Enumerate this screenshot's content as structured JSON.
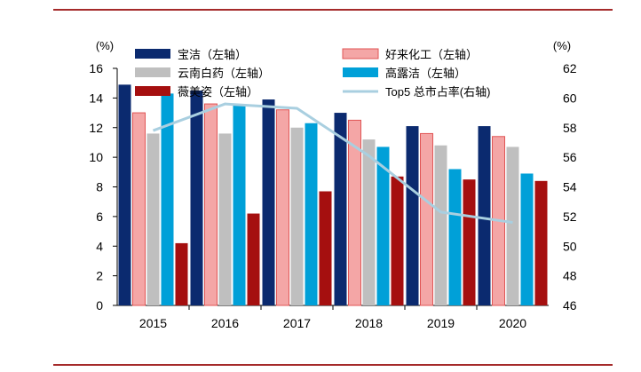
{
  "chart_data": {
    "type": "bar",
    "categories": [
      "2015",
      "2016",
      "2017",
      "2018",
      "2019",
      "2020"
    ],
    "left_axis": {
      "unit": "(%)",
      "ylim": [
        0,
        16
      ],
      "ticks": [
        "0",
        "2",
        "4",
        "6",
        "8",
        "10",
        "12",
        "14",
        "16"
      ]
    },
    "right_axis": {
      "unit": "(%)",
      "ylim": [
        46,
        62
      ],
      "ticks": [
        "46",
        "48",
        "50",
        "52",
        "54",
        "56",
        "58",
        "60",
        "62"
      ]
    },
    "series": [
      {
        "name": "宝洁（左轴）",
        "type": "bar",
        "axis": "left",
        "color": "#0b2a6f",
        "values": [
          14.9,
          14.5,
          13.9,
          13.0,
          12.1,
          12.1
        ]
      },
      {
        "name": "好来化工（左轴）",
        "type": "bar",
        "axis": "left",
        "color": "#f4a6a6",
        "border": "#e05555",
        "values": [
          13.0,
          13.6,
          13.2,
          12.5,
          11.6,
          11.4
        ]
      },
      {
        "name": "云南白药（左轴）",
        "type": "bar",
        "axis": "left",
        "color": "#bfbfbf",
        "values": [
          11.6,
          11.6,
          12.0,
          11.2,
          10.8,
          10.7
        ]
      },
      {
        "name": "高露洁（左轴）",
        "type": "bar",
        "axis": "left",
        "color": "#00a0d8",
        "values": [
          14.3,
          13.6,
          12.3,
          10.7,
          9.2,
          8.9
        ]
      },
      {
        "name": "薇美姿（左轴）",
        "type": "bar",
        "axis": "left",
        "color": "#a50f0f",
        "values": [
          4.2,
          6.2,
          7.7,
          8.7,
          8.5,
          8.4
        ]
      },
      {
        "name": "Top5 总市占率(右轴)",
        "type": "line",
        "axis": "right",
        "color": "#a9cfe0",
        "values": [
          57.8,
          59.6,
          59.3,
          56.1,
          52.3,
          51.6
        ]
      }
    ],
    "legend_position": "top",
    "grid": false
  }
}
